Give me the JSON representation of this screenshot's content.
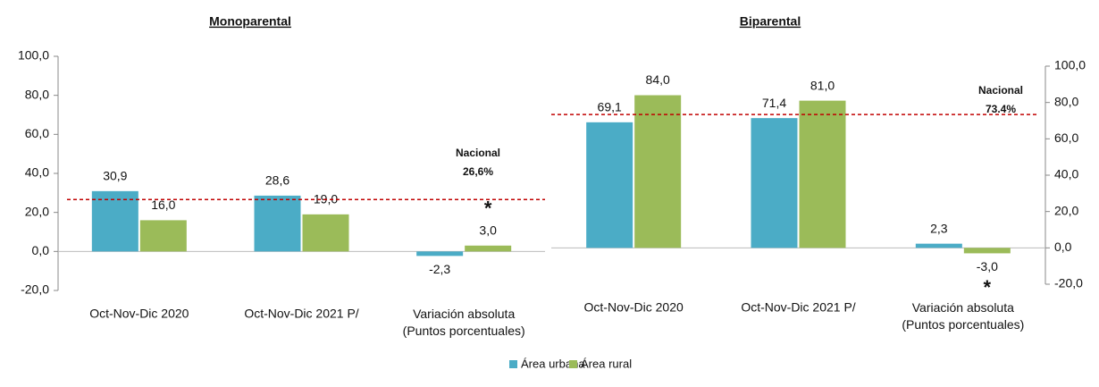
{
  "chart_data": [
    {
      "type": "bar",
      "title": "Monoparental",
      "categories": [
        "Oct-Nov-Dic 2020",
        "Oct-Nov-Dic 2021 P/",
        "Variación absoluta\n(Puntos porcentuales)"
      ],
      "series": [
        {
          "name": "Área urbana",
          "color": "#4bacc6",
          "values": [
            30.9,
            28.6,
            -2.3
          ],
          "value_labels": [
            "30,9",
            "28,6",
            "-2,3"
          ]
        },
        {
          "name": "Área rural",
          "color": "#9bbb59",
          "values": [
            16.0,
            19.0,
            3.0
          ],
          "value_labels": [
            "16,0",
            "19,0",
            "3,0"
          ]
        }
      ],
      "ylim": [
        -20,
        100
      ],
      "yticks": [
        {
          "value": -20,
          "label": "-20,0"
        },
        {
          "value": 0,
          "label": "0,0"
        },
        {
          "value": 20,
          "label": "20,0"
        },
        {
          "value": 40,
          "label": "40,0"
        },
        {
          "value": 60,
          "label": "60,0"
        },
        {
          "value": 80,
          "label": "80,0"
        },
        {
          "value": 100,
          "label": "100,0"
        }
      ],
      "y_axis_side": "left",
      "reference_line": {
        "name": "Nacional",
        "value": 26.6,
        "label": "26,6%",
        "color": "#c00000"
      },
      "annotation": "*"
    },
    {
      "type": "bar",
      "title": "Biparental",
      "categories": [
        "Oct-Nov-Dic 2020",
        "Oct-Nov-Dic 2021 P/",
        "Variación absoluta\n(Puntos porcentuales)"
      ],
      "series": [
        {
          "name": "Área urbana",
          "color": "#4bacc6",
          "values": [
            69.1,
            71.4,
            2.3
          ],
          "value_labels": [
            "69,1",
            "71,4",
            "2,3"
          ]
        },
        {
          "name": "Área rural",
          "color": "#9bbb59",
          "values": [
            84.0,
            81.0,
            -3.0
          ],
          "value_labels": [
            "84,0",
            "81,0",
            "-3,0"
          ]
        }
      ],
      "ylim": [
        -20,
        100
      ],
      "yticks": [
        {
          "value": -20,
          "label": "-20,0"
        },
        {
          "value": 0,
          "label": "0,0"
        },
        {
          "value": 20,
          "label": "20,0"
        },
        {
          "value": 40,
          "label": "40,0"
        },
        {
          "value": 60,
          "label": "60,0"
        },
        {
          "value": 80,
          "label": "80,0"
        },
        {
          "value": 100,
          "label": "100,0"
        }
      ],
      "y_axis_side": "right",
      "reference_line": {
        "name": "Nacional",
        "value": 73.4,
        "label": "73.4%",
        "color": "#c00000"
      },
      "annotation": "*"
    }
  ]
}
